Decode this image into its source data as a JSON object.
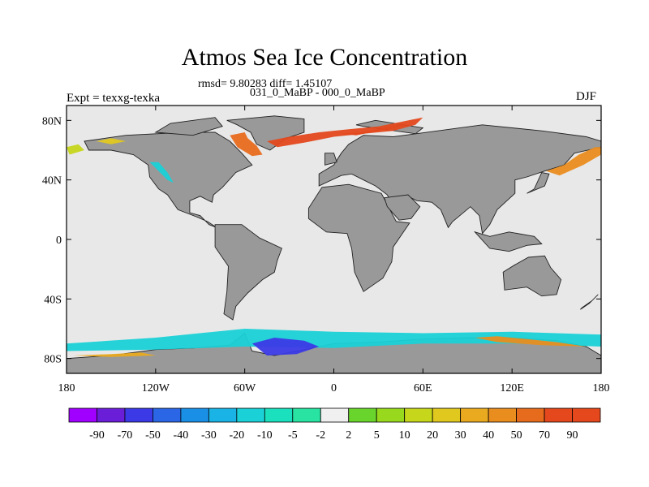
{
  "title": "Atmos Sea Ice Concentration",
  "stats_line": "rmsd= 9.80283 diff= 1.45107",
  "subtitle": "031_0_MaBP - 000_0_MaBP",
  "left_label": "Expt = texxg-texka",
  "right_label": "DJF",
  "map": {
    "projection": "cylindrical-equidistant",
    "lon_range": [
      -180,
      180
    ],
    "lat_range": [
      -90,
      90
    ],
    "lat_ticks": [
      {
        "value": 80,
        "label": "80N"
      },
      {
        "value": 40,
        "label": "40N"
      },
      {
        "value": 0,
        "label": "0"
      },
      {
        "value": -40,
        "label": "40S"
      },
      {
        "value": -80,
        "label": "80S"
      }
    ],
    "lon_ticks": [
      {
        "value": -180,
        "label": "180"
      },
      {
        "value": -120,
        "label": "120W"
      },
      {
        "value": -60,
        "label": "60W"
      },
      {
        "value": 0,
        "label": "0"
      },
      {
        "value": 60,
        "label": "60E"
      },
      {
        "value": 120,
        "label": "120E"
      },
      {
        "value": 180,
        "label": "180"
      }
    ],
    "ocean_color": "#e8e8e8",
    "land_color": "#999999",
    "land_masses": [
      {
        "name": "north-america",
        "lonlat": [
          [
            -168,
            66
          ],
          [
            -140,
            70
          ],
          [
            -100,
            72
          ],
          [
            -80,
            72
          ],
          [
            -70,
            66
          ],
          [
            -62,
            58
          ],
          [
            -55,
            50
          ],
          [
            -66,
            45
          ],
          [
            -75,
            35
          ],
          [
            -81,
            30
          ],
          [
            -82,
            25
          ],
          [
            -90,
            29
          ],
          [
            -97,
            26
          ],
          [
            -97,
            18
          ],
          [
            -90,
            16
          ],
          [
            -84,
            10
          ],
          [
            -79,
            8
          ],
          [
            -85,
            12
          ],
          [
            -92,
            15
          ],
          [
            -105,
            20
          ],
          [
            -112,
            30
          ],
          [
            -118,
            34
          ],
          [
            -124,
            42
          ],
          [
            -125,
            50
          ],
          [
            -135,
            57
          ],
          [
            -150,
            60
          ],
          [
            -165,
            60
          ]
        ]
      },
      {
        "name": "greenland",
        "lonlat": [
          [
            -72,
            80
          ],
          [
            -40,
            83
          ],
          [
            -20,
            81
          ],
          [
            -20,
            72
          ],
          [
            -32,
            68
          ],
          [
            -43,
            60
          ],
          [
            -52,
            64
          ],
          [
            -56,
            72
          ],
          [
            -65,
            77
          ]
        ]
      },
      {
        "name": "south-america",
        "lonlat": [
          [
            -80,
            10
          ],
          [
            -62,
            10
          ],
          [
            -50,
            1
          ],
          [
            -35,
            -6
          ],
          [
            -38,
            -14
          ],
          [
            -40,
            -22
          ],
          [
            -48,
            -27
          ],
          [
            -58,
            -36
          ],
          [
            -66,
            -45
          ],
          [
            -68,
            -54
          ],
          [
            -74,
            -50
          ],
          [
            -72,
            -35
          ],
          [
            -71,
            -18
          ],
          [
            -80,
            -5
          ]
        ]
      },
      {
        "name": "eurasia",
        "lonlat": [
          [
            -10,
            36
          ],
          [
            -10,
            44
          ],
          [
            0,
            50
          ],
          [
            5,
            58
          ],
          [
            10,
            64
          ],
          [
            20,
            70
          ],
          [
            40,
            69
          ],
          [
            70,
            73
          ],
          [
            100,
            77
          ],
          [
            140,
            73
          ],
          [
            170,
            69
          ],
          [
            180,
            66
          ],
          [
            180,
            62
          ],
          [
            162,
            58
          ],
          [
            155,
            50
          ],
          [
            142,
            46
          ],
          [
            130,
            42
          ],
          [
            122,
            40
          ],
          [
            122,
            31
          ],
          [
            110,
            20
          ],
          [
            105,
            10
          ],
          [
            100,
            4
          ],
          [
            98,
            16
          ],
          [
            92,
            22
          ],
          [
            80,
            12
          ],
          [
            77,
            8
          ],
          [
            72,
            20
          ],
          [
            66,
            25
          ],
          [
            56,
            26
          ],
          [
            52,
            28
          ],
          [
            44,
            14
          ],
          [
            36,
            30
          ],
          [
            28,
            36
          ],
          [
            20,
            40
          ],
          [
            12,
            44
          ],
          [
            5,
            43
          ]
        ]
      },
      {
        "name": "africa",
        "lonlat": [
          [
            -17,
            21
          ],
          [
            -8,
            35
          ],
          [
            10,
            37
          ],
          [
            32,
            31
          ],
          [
            42,
            12
          ],
          [
            51,
            11
          ],
          [
            40,
            -5
          ],
          [
            39,
            -15
          ],
          [
            33,
            -26
          ],
          [
            20,
            -35
          ],
          [
            14,
            -22
          ],
          [
            12,
            -6
          ],
          [
            9,
            4
          ],
          [
            -5,
            5
          ],
          [
            -17,
            14
          ]
        ]
      },
      {
        "name": "arabia",
        "lonlat": [
          [
            34,
            28
          ],
          [
            50,
            30
          ],
          [
            58,
            22
          ],
          [
            52,
            14
          ],
          [
            44,
            13
          ],
          [
            36,
            22
          ]
        ]
      },
      {
        "name": "australia",
        "lonlat": [
          [
            114,
            -22
          ],
          [
            122,
            -17
          ],
          [
            131,
            -12
          ],
          [
            142,
            -11
          ],
          [
            146,
            -19
          ],
          [
            153,
            -27
          ],
          [
            150,
            -37
          ],
          [
            140,
            -38
          ],
          [
            130,
            -32
          ],
          [
            115,
            -34
          ]
        ]
      },
      {
        "name": "antarctica",
        "lonlat": [
          [
            -180,
            -80
          ],
          [
            -150,
            -78
          ],
          [
            -120,
            -74
          ],
          [
            -95,
            -73
          ],
          [
            -70,
            -71
          ],
          [
            -60,
            -63
          ],
          [
            -55,
            -75
          ],
          [
            -40,
            -78
          ],
          [
            -20,
            -74
          ],
          [
            0,
            -70
          ],
          [
            30,
            -69
          ],
          [
            60,
            -67
          ],
          [
            90,
            -66
          ],
          [
            120,
            -66
          ],
          [
            150,
            -68
          ],
          [
            170,
            -72
          ],
          [
            180,
            -78
          ],
          [
            180,
            -90
          ],
          [
            -180,
            -90
          ]
        ]
      },
      {
        "name": "islands-northeast-asia",
        "lonlat": [
          [
            130,
            31
          ],
          [
            142,
            36
          ],
          [
            145,
            44
          ],
          [
            140,
            45
          ],
          [
            135,
            34
          ]
        ]
      },
      {
        "name": "indonesia",
        "lonlat": [
          [
            95,
            5
          ],
          [
            105,
            -6
          ],
          [
            118,
            -8
          ],
          [
            130,
            -4
          ],
          [
            140,
            -3
          ],
          [
            135,
            2
          ],
          [
            118,
            5
          ],
          [
            105,
            2
          ]
        ]
      },
      {
        "name": "new-zealand",
        "lonlat": [
          [
            167,
            -46
          ],
          [
            174,
            -41
          ],
          [
            178,
            -37
          ],
          [
            172,
            -43
          ],
          [
            166,
            -47
          ]
        ]
      },
      {
        "name": "uk",
        "lonlat": [
          [
            -6,
            50
          ],
          [
            2,
            52
          ],
          [
            0,
            58
          ],
          [
            -6,
            58
          ]
        ]
      },
      {
        "name": "canadian-arctic-islands",
        "lonlat": [
          [
            -120,
            72
          ],
          [
            -95,
            70
          ],
          [
            -75,
            76
          ],
          [
            -80,
            82
          ],
          [
            -110,
            78
          ]
        ]
      },
      {
        "name": "svalbard-and-novaya",
        "lonlat": [
          [
            15,
            77
          ],
          [
            28,
            80
          ],
          [
            60,
            75
          ],
          [
            55,
            71
          ],
          [
            20,
            76
          ]
        ]
      }
    ],
    "anomalies": [
      {
        "name": "barents-gin-seas-increase",
        "value": 70,
        "lonlat": [
          [
            -45,
            66
          ],
          [
            -30,
            69
          ],
          [
            -10,
            72
          ],
          [
            10,
            74
          ],
          [
            30,
            76
          ],
          [
            45,
            79
          ],
          [
            60,
            82
          ],
          [
            55,
            77
          ],
          [
            40,
            73
          ],
          [
            20,
            71
          ],
          [
            0,
            69
          ],
          [
            -20,
            65
          ],
          [
            -38,
            62
          ]
        ]
      },
      {
        "name": "baffin-bay-increase",
        "value": 50,
        "lonlat": [
          [
            -60,
            72
          ],
          [
            -58,
            68
          ],
          [
            -52,
            63
          ],
          [
            -48,
            57
          ],
          [
            -55,
            56
          ],
          [
            -65,
            62
          ],
          [
            -70,
            70
          ]
        ]
      },
      {
        "name": "barents-core-increase",
        "value": 90,
        "lonlat": [
          [
            5,
            71
          ],
          [
            20,
            72
          ],
          [
            40,
            76
          ],
          [
            50,
            78
          ],
          [
            35,
            74
          ],
          [
            15,
            70
          ]
        ]
      },
      {
        "name": "okhotsk-increase",
        "value": 40,
        "lonlat": [
          [
            143,
            46
          ],
          [
            155,
            50
          ],
          [
            165,
            57
          ],
          [
            176,
            62
          ],
          [
            180,
            62
          ],
          [
            180,
            57
          ],
          [
            168,
            50
          ],
          [
            152,
            43
          ]
        ]
      },
      {
        "name": "bering-increase",
        "value": 10,
        "lonlat": [
          [
            -180,
            62
          ],
          [
            -172,
            64
          ],
          [
            -168,
            60
          ],
          [
            -178,
            57
          ]
        ]
      },
      {
        "name": "labrador-coast-decrease",
        "value": -20,
        "lonlat": [
          [
            -124,
            52
          ],
          [
            -118,
            52
          ],
          [
            -112,
            45
          ],
          [
            -108,
            38
          ],
          [
            -112,
            40
          ],
          [
            -120,
            48
          ]
        ]
      },
      {
        "name": "hudson-fringe-increase",
        "value": 20,
        "lonlat": [
          [
            -160,
            66
          ],
          [
            -150,
            68
          ],
          [
            -140,
            66
          ],
          [
            -150,
            64
          ]
        ]
      },
      {
        "name": "southern-ocean-decrease-band",
        "value": -20,
        "lonlat": [
          [
            -180,
            -70
          ],
          [
            -120,
            -66
          ],
          [
            -60,
            -60
          ],
          [
            0,
            -62
          ],
          [
            60,
            -63
          ],
          [
            120,
            -62
          ],
          [
            180,
            -64
          ],
          [
            180,
            -72
          ],
          [
            120,
            -70
          ],
          [
            60,
            -70
          ],
          [
            0,
            -73
          ],
          [
            -60,
            -72
          ],
          [
            -120,
            -74
          ],
          [
            -180,
            -75
          ]
        ]
      },
      {
        "name": "weddell-sea-decrease",
        "value": -70,
        "lonlat": [
          [
            -55,
            -70
          ],
          [
            -40,
            -66
          ],
          [
            -20,
            -68
          ],
          [
            -10,
            -72
          ],
          [
            -25,
            -77
          ],
          [
            -45,
            -78
          ]
        ]
      },
      {
        "name": "ross-sea-increase",
        "value": 30,
        "lonlat": [
          [
            -175,
            -78
          ],
          [
            -150,
            -77
          ],
          [
            -130,
            -76
          ],
          [
            -120,
            -78
          ],
          [
            -150,
            -79
          ]
        ]
      },
      {
        "name": "east-antarctic-increase",
        "value": 40,
        "lonlat": [
          [
            95,
            -66
          ],
          [
            110,
            -65
          ],
          [
            130,
            -67
          ],
          [
            150,
            -69
          ],
          [
            170,
            -72
          ],
          [
            140,
            -71
          ],
          [
            110,
            -69
          ]
        ]
      }
    ]
  },
  "colorbar": {
    "levels": [
      "-90",
      "-70",
      "-50",
      "-40",
      "-30",
      "-20",
      "-10",
      "-5",
      "-2",
      "2",
      "5",
      "10",
      "20",
      "30",
      "40",
      "50",
      "70",
      "90"
    ],
    "colors": [
      "#a000ff",
      "#6a1ed8",
      "#3b3ae6",
      "#2a66e6",
      "#1a8fe6",
      "#19b3e6",
      "#1ad1d7",
      "#1ae0bd",
      "#29e3a2",
      "#f0f0f0",
      "#69d42b",
      "#99d91d",
      "#c6d61b",
      "#e0c81f",
      "#eaaa20",
      "#ea8d1f",
      "#e76b1d",
      "#e4481c",
      "#e4481c"
    ]
  }
}
